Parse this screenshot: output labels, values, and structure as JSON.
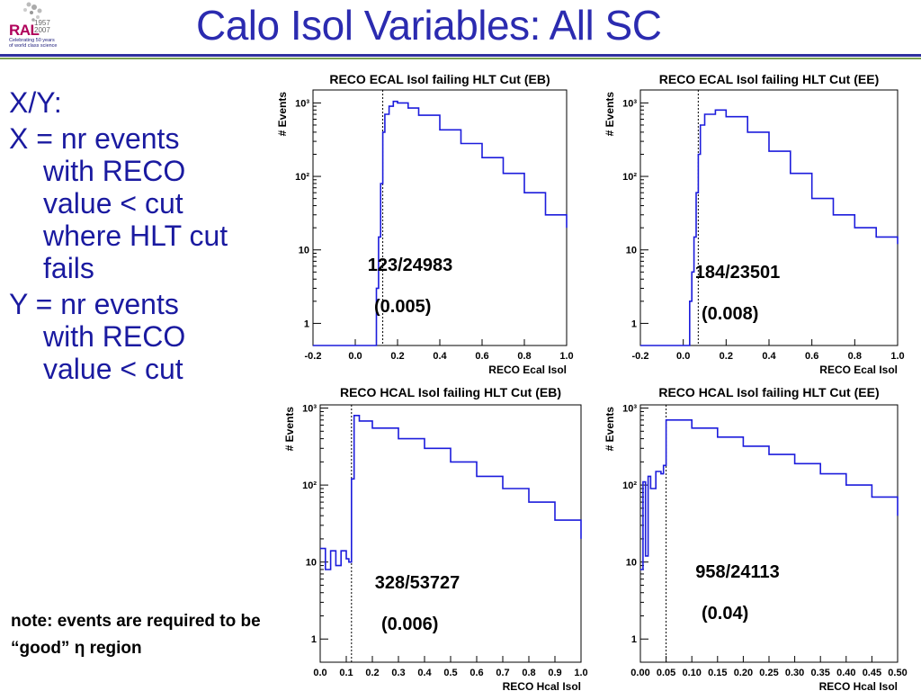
{
  "logo": {
    "mark": "RAL",
    "years": [
      "1957",
      "2007"
    ],
    "tagline": [
      "Celebrating 50 years",
      "of world class science"
    ]
  },
  "slide": {
    "title": "Calo Isol Variables: All SC",
    "bullets": [
      "X/Y:",
      "X = nr events with RECO value < cut where HLT cut fails",
      "Y = nr events with RECO value < cut"
    ],
    "note": "note: events are required to be “good” η region"
  },
  "colors": {
    "title": "#2b2bb0",
    "bullets": "#1a1aa0",
    "histogram": "#1c1cdc",
    "rule_blue": "#3030a0",
    "rule_green": "#7aa050"
  },
  "chart_data": [
    {
      "type": "histogram",
      "title": "RECO ECAL Isol failing HLT Cut (EB)",
      "xlabel": "RECO Ecal Isol",
      "ylabel": "# Events",
      "y_scale": "log",
      "xlim": [
        -0.2,
        1.0
      ],
      "ylim": [
        0.5,
        1500
      ],
      "x_ticks": [
        "-0.2",
        "0.0",
        "0.2",
        "0.4",
        "0.6",
        "0.8",
        "1.0"
      ],
      "x_tick_values": [
        -0.2,
        0.0,
        0.2,
        0.4,
        0.6,
        0.8,
        1.0
      ],
      "y_ticks": [
        "1",
        "10",
        "10²",
        "10³"
      ],
      "y_tick_values": [
        1,
        10,
        100,
        1000
      ],
      "cut_line": 0.13,
      "series": [
        {
          "x": [
            -0.2,
            0.09,
            0.1,
            0.11,
            0.12,
            0.13,
            0.14,
            0.16,
            0.18,
            0.2,
            0.25,
            0.3,
            0.4,
            0.5,
            0.6,
            0.7,
            0.8,
            0.9,
            1.0
          ],
          "y": [
            0.5,
            0.5,
            3,
            15,
            80,
            400,
            700,
            900,
            1050,
            1000,
            850,
            680,
            430,
            280,
            180,
            110,
            60,
            30,
            20
          ]
        }
      ],
      "annotation": [
        "123/24983",
        "(0.005)"
      ]
    },
    {
      "type": "histogram",
      "title": "RECO ECAL Isol failing HLT Cut (EE)",
      "xlabel": "RECO Ecal Isol",
      "ylabel": "# Events",
      "y_scale": "log",
      "xlim": [
        -0.2,
        1.0
      ],
      "ylim": [
        0.5,
        1500
      ],
      "x_ticks": [
        "-0.2",
        "0.0",
        "0.2",
        "0.4",
        "0.6",
        "0.8",
        "1.0"
      ],
      "x_tick_values": [
        -0.2,
        0.0,
        0.2,
        0.4,
        0.6,
        0.8,
        1.0
      ],
      "y_ticks": [
        "1",
        "10",
        "10²",
        "10³"
      ],
      "y_tick_values": [
        1,
        10,
        100,
        1000
      ],
      "cut_line": 0.07,
      "series": [
        {
          "x": [
            -0.2,
            0.02,
            0.03,
            0.04,
            0.05,
            0.06,
            0.07,
            0.08,
            0.1,
            0.15,
            0.2,
            0.3,
            0.4,
            0.5,
            0.6,
            0.7,
            0.8,
            0.9,
            1.0
          ],
          "y": [
            0.5,
            0.5,
            2,
            5,
            15,
            60,
            200,
            500,
            700,
            800,
            650,
            400,
            220,
            110,
            50,
            30,
            20,
            15,
            12
          ]
        }
      ],
      "annotation": [
        "184/23501",
        "(0.008)"
      ]
    },
    {
      "type": "histogram",
      "title": "RECO HCAL Isol failing HLT Cut (EB)",
      "xlabel": "RECO Hcal Isol",
      "ylabel": "# Events",
      "y_scale": "log",
      "xlim": [
        0.0,
        1.0
      ],
      "ylim": [
        0.5,
        1100
      ],
      "x_ticks": [
        "0.0",
        "0.1",
        "0.2",
        "0.3",
        "0.4",
        "0.5",
        "0.6",
        "0.7",
        "0.8",
        "0.9",
        "1.0"
      ],
      "x_tick_values": [
        0.0,
        0.1,
        0.2,
        0.3,
        0.4,
        0.5,
        0.6,
        0.7,
        0.8,
        0.9,
        1.0
      ],
      "y_ticks": [
        "1",
        "10",
        "10²",
        "10³"
      ],
      "y_tick_values": [
        1,
        10,
        100,
        1000
      ],
      "cut_line": 0.12,
      "series": [
        {
          "x": [
            0.0,
            0.02,
            0.04,
            0.06,
            0.08,
            0.1,
            0.11,
            0.12,
            0.13,
            0.15,
            0.2,
            0.3,
            0.4,
            0.5,
            0.6,
            0.7,
            0.8,
            0.9,
            1.0
          ],
          "y": [
            15,
            8,
            14,
            9,
            14,
            11,
            10,
            120,
            800,
            680,
            550,
            400,
            300,
            200,
            130,
            90,
            60,
            35,
            20
          ]
        }
      ],
      "annotation": [
        "328/53727",
        "(0.006)"
      ]
    },
    {
      "type": "histogram",
      "title": "RECO HCAL Isol failing HLT Cut (EE)",
      "xlabel": "RECO Hcal Isol",
      "ylabel": "# Events",
      "y_scale": "log",
      "xlim": [
        0.0,
        0.5
      ],
      "ylim": [
        0.5,
        1100
      ],
      "x_ticks": [
        "0.00",
        "0.05",
        "0.10",
        "0.15",
        "0.20",
        "0.25",
        "0.30",
        "0.35",
        "0.40",
        "0.45",
        "0.50"
      ],
      "x_tick_values": [
        0.0,
        0.05,
        0.1,
        0.15,
        0.2,
        0.25,
        0.3,
        0.35,
        0.4,
        0.45,
        0.5
      ],
      "y_ticks": [
        "1",
        "10",
        "10²",
        "10³"
      ],
      "y_tick_values": [
        1,
        10,
        100,
        1000
      ],
      "cut_line": 0.05,
      "series": [
        {
          "x": [
            0.0,
            0.005,
            0.01,
            0.015,
            0.02,
            0.03,
            0.04,
            0.045,
            0.05,
            0.06,
            0.1,
            0.15,
            0.2,
            0.25,
            0.3,
            0.35,
            0.4,
            0.45,
            0.5
          ],
          "y": [
            8,
            110,
            12,
            130,
            90,
            150,
            140,
            180,
            700,
            700,
            550,
            420,
            320,
            250,
            190,
            140,
            100,
            70,
            40
          ]
        }
      ],
      "annotation": [
        "958/24113",
        "(0.04)"
      ]
    }
  ]
}
